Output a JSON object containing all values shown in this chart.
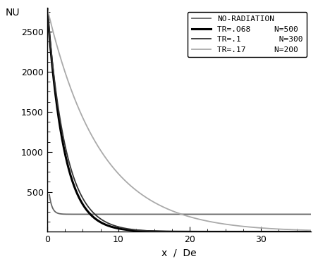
{
  "xlabel": "x  /  De",
  "ylabel": "NU",
  "xlim": [
    0,
    37
  ],
  "ylim": [
    0,
    2800
  ],
  "yticks": [
    500,
    1000,
    1500,
    2000,
    2500
  ],
  "xticks": [
    0,
    10,
    20,
    30
  ],
  "background_color": "#ffffff",
  "curves": [
    {
      "label": "NO-RADIATION",
      "color": "#666666",
      "linewidth": 1.3,
      "type": "no_rad"
    },
    {
      "label": "TR=.O68     N=500",
      "color": "#000000",
      "linewidth": 2.2,
      "type": "rad1"
    },
    {
      "label": "TR=.1        N=300",
      "color": "#333333",
      "linewidth": 1.3,
      "type": "rad2"
    },
    {
      "label": "TR=.17      N=200",
      "color": "#aaaaaa",
      "linewidth": 1.3,
      "type": "rad3"
    }
  ]
}
